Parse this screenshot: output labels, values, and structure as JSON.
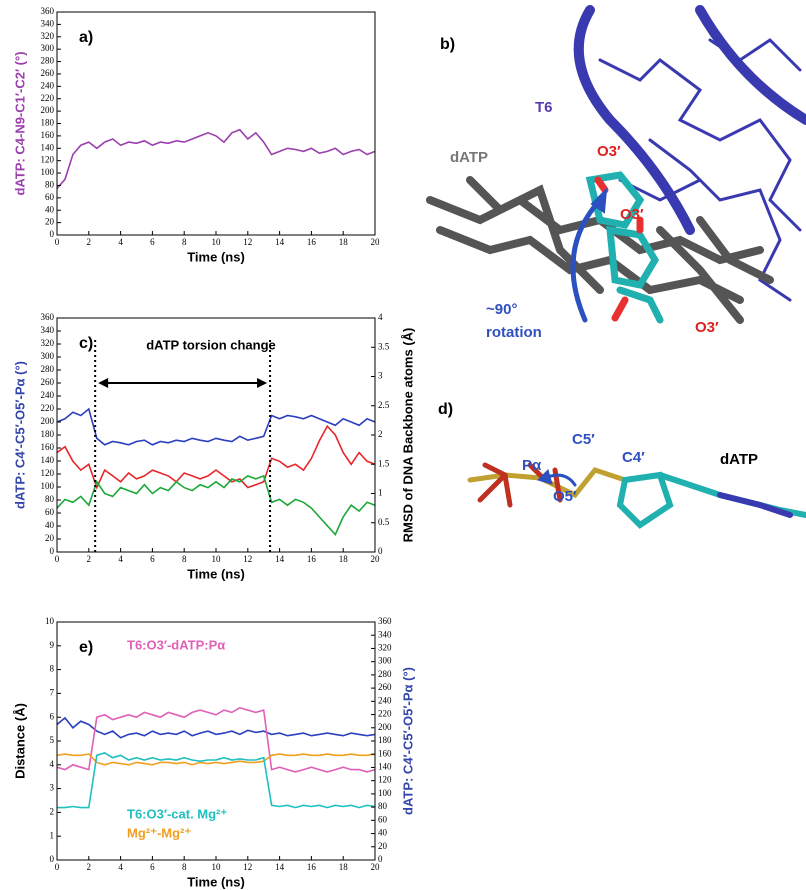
{
  "chart_data": [
    {
      "type": "line",
      "panel_label": "a)",
      "xlabel": "Time (ns)",
      "ylabel": "dATP: C4-N9-C1′-C2′ (°)",
      "ylabel_color": "#9b3fae",
      "x": [
        0,
        0.5,
        1,
        1.5,
        2,
        2.5,
        3,
        3.5,
        4,
        4.5,
        5,
        5.5,
        6,
        6.5,
        7,
        7.5,
        8,
        8.5,
        9,
        9.5,
        10,
        10.5,
        11,
        11.5,
        12,
        12.5,
        13,
        13.5,
        14,
        14.5,
        15,
        15.5,
        16,
        16.5,
        17,
        17.5,
        18,
        18.5,
        19,
        19.5,
        20
      ],
      "xlim": [
        0,
        20
      ],
      "xticks": [
        0,
        2,
        4,
        6,
        8,
        10,
        12,
        14,
        16,
        18,
        20
      ],
      "ylim": [
        0,
        360
      ],
      "yticks": [
        0,
        20,
        40,
        60,
        80,
        100,
        120,
        140,
        160,
        180,
        200,
        220,
        240,
        260,
        280,
        300,
        320,
        340,
        360
      ],
      "series": [
        {
          "color": "#9b3fae",
          "values": [
            75,
            90,
            130,
            145,
            150,
            140,
            150,
            155,
            145,
            150,
            148,
            152,
            145,
            150,
            148,
            152,
            150,
            155,
            160,
            165,
            160,
            150,
            165,
            170,
            155,
            165,
            150,
            130,
            135,
            140,
            138,
            135,
            140,
            132,
            135,
            140,
            130,
            135,
            138,
            130,
            135
          ]
        }
      ]
    },
    {
      "type": "line",
      "panel_label": "c)",
      "xlabel": "Time (ns)",
      "ylabel": "dATP: C4′-C5′-O5′-Pα (°)",
      "ylabel_color": "#3344aa",
      "y2label": "RMSD of DNA Backbone atoms (Å)",
      "y2label_color": "#000000",
      "annotation": "dATP torsion change",
      "vlines": [
        2.4,
        13.4
      ],
      "x": [
        0,
        0.5,
        1,
        1.5,
        2,
        2.5,
        3,
        3.5,
        4,
        4.5,
        5,
        5.5,
        6,
        6.5,
        7,
        7.5,
        8,
        8.5,
        9,
        9.5,
        10,
        10.5,
        11,
        11.5,
        12,
        12.5,
        13,
        13.5,
        14,
        14.5,
        15,
        15.5,
        16,
        16.5,
        17,
        17.5,
        18,
        18.5,
        19,
        19.5,
        20
      ],
      "xlim": [
        0,
        20
      ],
      "xticks": [
        0,
        2,
        4,
        6,
        8,
        10,
        12,
        14,
        16,
        18,
        20
      ],
      "ylim": [
        0,
        360
      ],
      "yticks": [
        0,
        20,
        40,
        60,
        80,
        100,
        120,
        140,
        160,
        180,
        200,
        220,
        240,
        260,
        280,
        300,
        320,
        340,
        360
      ],
      "y2lim": [
        0,
        4
      ],
      "y2ticks": [
        0,
        0.5,
        1,
        1.5,
        2,
        2.5,
        3,
        3.5,
        4
      ],
      "series": [
        {
          "color": "#2b3fbf",
          "values": [
            200,
            205,
            215,
            210,
            220,
            175,
            165,
            170,
            168,
            165,
            170,
            172,
            165,
            170,
            168,
            172,
            170,
            175,
            172,
            170,
            175,
            172,
            170,
            178,
            172,
            175,
            178,
            210,
            205,
            210,
            208,
            205,
            210,
            205,
            200,
            195,
            205,
            200,
            195,
            205,
            200
          ]
        },
        {
          "color": "#e8262a",
          "axis": "y2",
          "values": [
            1.7,
            1.8,
            1.55,
            1.4,
            1.5,
            1.1,
            1.4,
            1.3,
            1.2,
            1.35,
            1.25,
            1.3,
            1.4,
            1.35,
            1.3,
            1.2,
            1.35,
            1.3,
            1.25,
            1.3,
            1.4,
            1.3,
            1.2,
            1.25,
            1.1,
            1.15,
            1.2,
            1.6,
            1.55,
            1.45,
            1.5,
            1.4,
            1.6,
            1.9,
            2.15,
            2.0,
            1.7,
            1.5,
            1.7,
            1.55,
            1.5
          ]
        },
        {
          "color": "#1ea83a",
          "axis": "y2",
          "values": [
            0.75,
            0.9,
            0.85,
            0.95,
            0.8,
            1.2,
            1.0,
            0.95,
            1.1,
            1.05,
            1.0,
            1.15,
            1.0,
            1.1,
            1.05,
            1.2,
            1.1,
            1.05,
            1.15,
            1.1,
            1.2,
            1.1,
            1.25,
            1.2,
            1.3,
            1.25,
            1.3,
            0.85,
            0.9,
            0.8,
            0.9,
            0.85,
            0.75,
            0.6,
            0.45,
            0.3,
            0.6,
            0.8,
            0.7,
            0.85,
            0.8
          ]
        }
      ]
    },
    {
      "type": "line",
      "panel_label": "e)",
      "xlabel": "Time (ns)",
      "ylabel": "Distance (Å)",
      "ylabel_color": "#000000",
      "y2label": "dATP: C4′-C5′-O5′-Pα (°)",
      "y2label_color": "#3344aa",
      "x": [
        0,
        0.5,
        1,
        1.5,
        2,
        2.5,
        3,
        3.5,
        4,
        4.5,
        5,
        5.5,
        6,
        6.5,
        7,
        7.5,
        8,
        8.5,
        9,
        9.5,
        10,
        10.5,
        11,
        11.5,
        12,
        12.5,
        13,
        13.5,
        14,
        14.5,
        15,
        15.5,
        16,
        16.5,
        17,
        17.5,
        18,
        18.5,
        19,
        19.5,
        20
      ],
      "xlim": [
        0,
        20
      ],
      "xticks": [
        0,
        2,
        4,
        6,
        8,
        10,
        12,
        14,
        16,
        18,
        20
      ],
      "ylim": [
        0,
        10
      ],
      "yticks": [
        0,
        1,
        2,
        3,
        4,
        5,
        6,
        7,
        8,
        9,
        10
      ],
      "y2lim": [
        0,
        360
      ],
      "y2ticks": [
        0,
        20,
        40,
        60,
        80,
        100,
        120,
        140,
        160,
        180,
        200,
        220,
        240,
        260,
        280,
        300,
        320,
        340,
        360
      ],
      "series": [
        {
          "color": "#2b3fbf",
          "axis": "y2",
          "values": [
            205,
            215,
            200,
            210,
            205,
            195,
            190,
            195,
            185,
            190,
            192,
            188,
            195,
            190,
            192,
            190,
            195,
            188,
            192,
            195,
            190,
            192,
            195,
            190,
            196,
            193,
            195,
            190,
            192,
            188,
            190,
            192,
            188,
            190,
            192,
            190,
            188,
            192,
            190,
            188,
            190
          ]
        },
        {
          "name": "T6:O3′-dATP:Pα",
          "color": "#e060b8",
          "values": [
            3.9,
            3.8,
            4.0,
            3.9,
            3.8,
            6.0,
            6.1,
            5.9,
            6.0,
            6.1,
            6.0,
            6.2,
            6.1,
            6.0,
            6.2,
            6.1,
            6.0,
            6.2,
            6.3,
            6.2,
            6.1,
            6.3,
            6.2,
            6.4,
            6.3,
            6.2,
            6.3,
            3.8,
            3.9,
            3.8,
            3.7,
            3.8,
            3.9,
            3.8,
            3.7,
            3.8,
            3.9,
            3.8,
            3.8,
            3.7,
            3.8
          ]
        },
        {
          "name": "Mg²⁺-Mg²⁺",
          "color": "#f0a020",
          "values": [
            4.4,
            4.45,
            4.4,
            4.4,
            4.45,
            4.1,
            4.0,
            4.1,
            4.05,
            4.0,
            4.1,
            4.05,
            4.0,
            4.1,
            4.1,
            4.05,
            4.1,
            4.0,
            4.1,
            4.05,
            4.1,
            4.05,
            4.1,
            4.15,
            4.1,
            4.1,
            4.15,
            4.4,
            4.45,
            4.4,
            4.4,
            4.45,
            4.4,
            4.4,
            4.45,
            4.4,
            4.4,
            4.45,
            4.4,
            4.4,
            4.45
          ]
        },
        {
          "name": "T6:O3′-cat. Mg²⁺",
          "color": "#20c0c0",
          "values": [
            2.2,
            2.2,
            2.25,
            2.2,
            2.2,
            4.4,
            4.5,
            4.3,
            4.4,
            4.2,
            4.3,
            4.2,
            4.3,
            4.2,
            4.25,
            4.2,
            4.3,
            4.2,
            4.15,
            4.2,
            4.2,
            4.3,
            4.2,
            4.25,
            4.2,
            4.2,
            4.3,
            2.3,
            2.25,
            2.3,
            2.2,
            2.3,
            2.25,
            2.3,
            2.2,
            2.3,
            2.25,
            2.3,
            2.2,
            2.3,
            2.25
          ]
        }
      ]
    }
  ],
  "figure_labels": {
    "b": {
      "panel_label": "b)",
      "t6": "T6",
      "datp": "dATP",
      "o3_top": "O3′",
      "o3_mid": "O3′",
      "o3_bottom": "O3′",
      "angle": "~90°",
      "rotation": "rotation"
    },
    "d": {
      "panel_label": "d)",
      "c5": "C5′",
      "c4": "C4′",
      "palpha": "Pα",
      "o5": "O5′",
      "datp": "dATP"
    }
  }
}
